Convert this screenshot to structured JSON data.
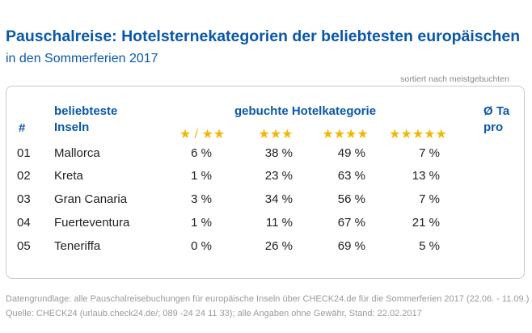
{
  "title": "Pauschalreise: Hotelsternekategorien der beliebtesten europäischen",
  "subtitle": "in den Sommerferien 2017",
  "sort_note": "sortiert nach meistgebuchten",
  "headers": {
    "rank": "#",
    "island": "beliebteste Inseln",
    "category": "gebuchte Hotelkategorie",
    "avg": "Ø Ta pro"
  },
  "stars": {
    "cat1": "★ / ★★",
    "cat2": "★★★",
    "cat3": "★★★★",
    "cat4": "★★★★★"
  },
  "rows": [
    {
      "rank": "01",
      "island": "Mallorca",
      "v1": "6 %",
      "v2": "38 %",
      "v3": "49 %",
      "v4": "7 %"
    },
    {
      "rank": "02",
      "island": "Kreta",
      "v1": "1 %",
      "v2": "23 %",
      "v3": "63 %",
      "v4": "13 %"
    },
    {
      "rank": "03",
      "island": "Gran Canaria",
      "v1": "3 %",
      "v2": "34 %",
      "v3": "56 %",
      "v4": "7 %"
    },
    {
      "rank": "04",
      "island": "Fuerteventura",
      "v1": "1 %",
      "v2": "11 %",
      "v3": "67 %",
      "v4": "21 %"
    },
    {
      "rank": "05",
      "island": "Teneriffa",
      "v1": "0 %",
      "v2": "26 %",
      "v3": "69 %",
      "v4": "5 %"
    }
  ],
  "footer": {
    "line1": "Datengrundlage: alle Pauschalreisebuchungen für europäische Inseln über CHECK24.de für die Sommerferien 2017 (22.06. - 11.09.)",
    "line2": "Quelle: CHECK24 (urlaub.check24.de/; 089 -24 24 11 33); alle Angaben ohne Gewähr, Stand: 22.02.2017"
  },
  "colors": {
    "heading_blue": "#0a58a8",
    "star_yellow": "#f2b705",
    "footer_gray": "#9a9a9a"
  }
}
